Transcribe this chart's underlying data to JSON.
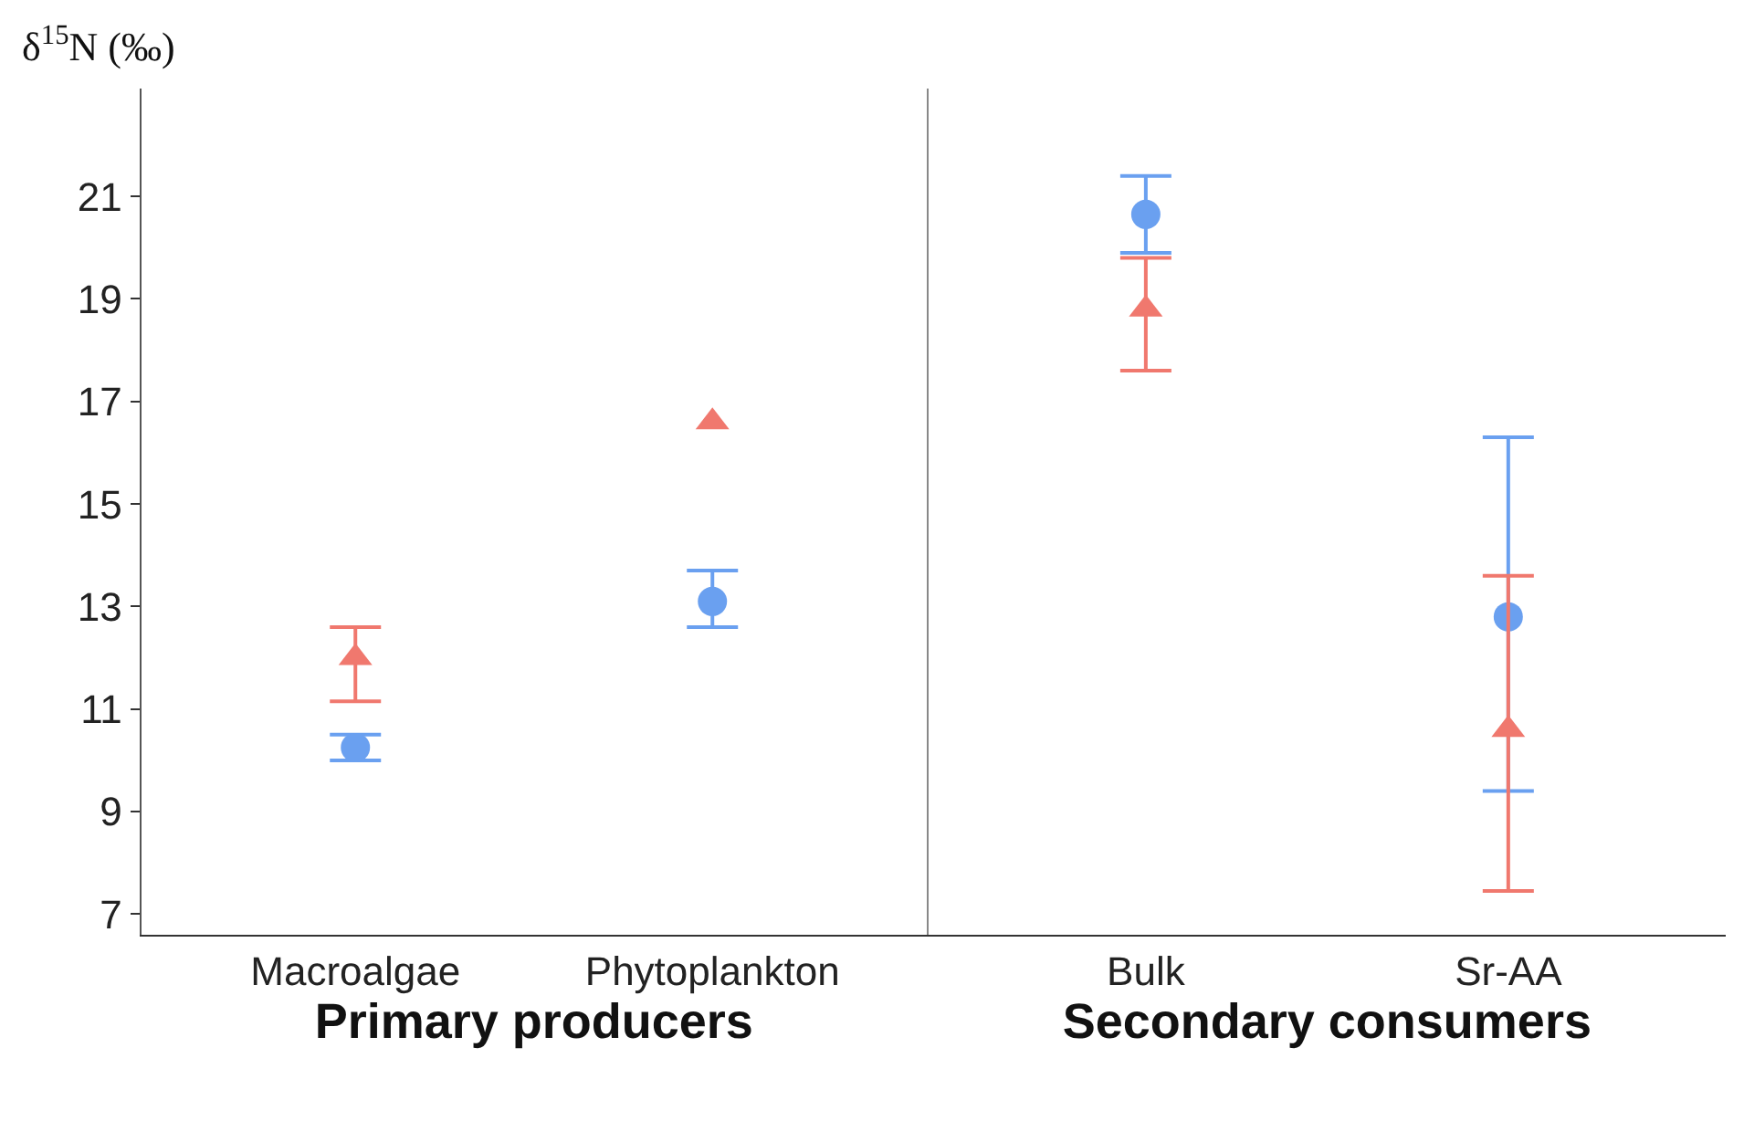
{
  "chart_data": [
    {
      "type": "scatter",
      "xlabel": "Primary producers",
      "ylabel": "δ$^{15}$N (‰)",
      "categories": [
        "Macroalgae",
        "Phytoplankton"
      ],
      "ylim": [
        6.6,
        23.1
      ],
      "yticks": [
        7,
        9,
        11,
        13,
        15,
        17,
        19,
        21
      ],
      "series": [
        {
          "color": "#6aa0f0",
          "marker": "circle",
          "values": [
            10.25,
            13.1
          ],
          "errors": [
            [
              10.0,
              10.5
            ],
            [
              12.6,
              13.7
            ]
          ]
        },
        {
          "color": "#f0786e",
          "marker": "triangle",
          "values": [
            12.0,
            16.6
          ],
          "errors": [
            [
              11.15,
              12.6
            ],
            null
          ]
        }
      ]
    },
    {
      "type": "scatter",
      "xlabel": "Secondary consumers",
      "categories": [
        "Bulk",
        "Sr-AA"
      ],
      "ylim": [
        6.6,
        23.1
      ],
      "tick_labels": "x",
      "series": [
        {
          "color": "#6aa0f0",
          "marker": "circle",
          "values": [
            20.65,
            12.8
          ],
          "errors": [
            [
              19.9,
              21.4
            ],
            [
              9.4,
              16.3
            ]
          ]
        },
        {
          "color": "#f0786e",
          "marker": "triangle",
          "values": [
            18.8,
            10.6
          ],
          "errors": [
            [
              17.6,
              19.8
            ],
            [
              7.45,
              13.6
            ]
          ]
        }
      ]
    }
  ]
}
